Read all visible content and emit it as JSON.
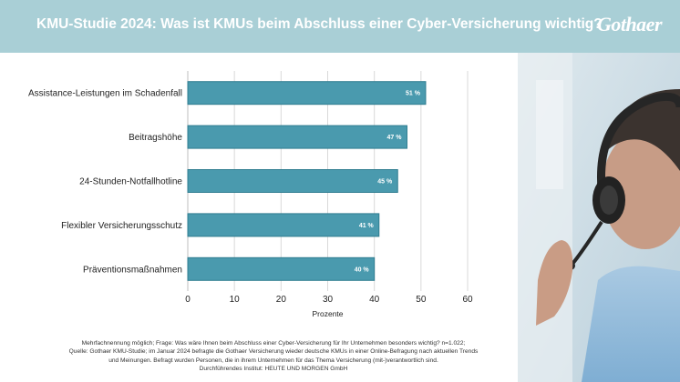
{
  "header": {
    "title": "KMU-Studie 2024: Was ist KMUs beim Abschluss einer Cyber-Versicherung wichtig?",
    "logo_text": "Gothaer"
  },
  "colors": {
    "header_bg": "#a9cfd6",
    "bar": "#4a9aae",
    "bar_border": "#2f7d90"
  },
  "chart_data": {
    "type": "bar",
    "orientation": "horizontal",
    "categories": [
      "Assistance-Leistungen im Schadenfall",
      "Beitragshöhe",
      "24-Stunden-Notfallhotline",
      "Flexibler Versicherungsschutz",
      "Präventionsmaßnahmen"
    ],
    "values": [
      51,
      47,
      45,
      41,
      40
    ],
    "value_labels": [
      "51 %",
      "47 %",
      "45 %",
      "41 %",
      "40 %"
    ],
    "xlabel": "Prozente",
    "ylabel": "",
    "xlim": [
      0,
      60
    ],
    "x_ticks": [
      0,
      10,
      20,
      30,
      40,
      50,
      60
    ],
    "grid": true
  },
  "footnote": [
    "Mehrfachnennung möglich; Frage: Was wäre Ihnen beim Abschluss einer Cyber-Versicherung für Ihr Unternehmen besonders wichtig? n=1.022;",
    "Quelle: Gothaer KMU-Studie; im Januar 2024 befragte die Gothaer Versicherung wieder deutsche KMUs in einer Online-Befragung nach aktuellen Trends",
    "und Meinungen. Befragt wurden Personen, die in ihrem Unternehmen für das Thema Versicherung (mit-)verantwortlich sind.",
    "Durchführendes Institut: HEUTE UND MORGEN GmbH"
  ]
}
